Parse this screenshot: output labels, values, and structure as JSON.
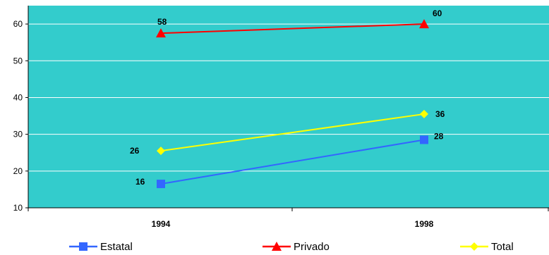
{
  "chart_data": {
    "type": "line",
    "title": "",
    "xlabel": "",
    "ylabel": "",
    "categories": [
      "1994",
      "1998"
    ],
    "ylim": [
      10,
      65
    ],
    "yticks": [
      10,
      20,
      30,
      40,
      50,
      60
    ],
    "grid": true,
    "legend_position": "bottom",
    "plot_background": "#33CCCC",
    "grid_color": "#ffffff",
    "series": [
      {
        "name": "Estatal",
        "values": [
          16.5,
          28.5
        ],
        "labels": [
          "16",
          "28"
        ],
        "color": "#3366FF",
        "marker": "square"
      },
      {
        "name": "Privado",
        "values": [
          57.5,
          60
        ],
        "labels": [
          "58",
          "60"
        ],
        "color": "#FF0000",
        "marker": "triangle"
      },
      {
        "name": "Total",
        "values": [
          25.5,
          35.5
        ],
        "labels": [
          "26",
          "36"
        ],
        "color": "#FFFF00",
        "marker": "diamond"
      }
    ]
  }
}
